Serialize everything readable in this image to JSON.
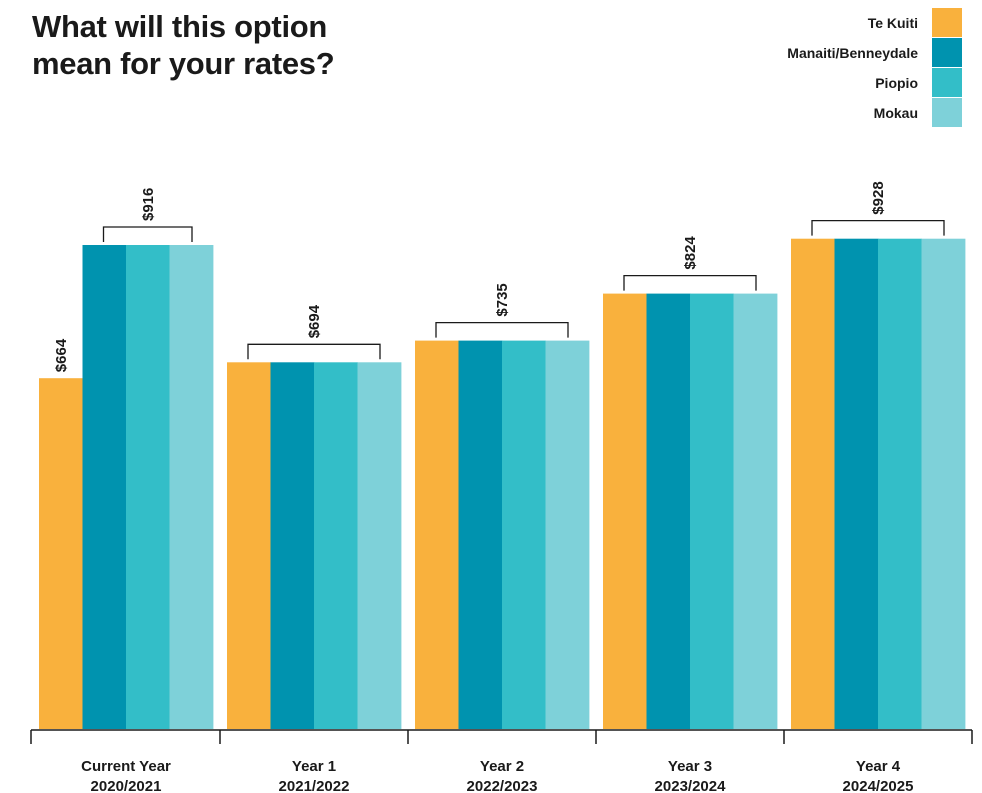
{
  "title_lines": [
    "What will this option",
    "mean for your rates?"
  ],
  "colors": {
    "te_kuiti": "#F9B13D",
    "manaiti": "#0093AF",
    "piopio": "#33BEC8",
    "mokau": "#7ED1D9",
    "text": "#1a1a1a"
  },
  "chart_data": {
    "type": "bar",
    "title": "What will this option mean for your rates?",
    "categories": [
      [
        "Current Year",
        "2020/2021"
      ],
      [
        "Year 1",
        "2021/2022"
      ],
      [
        "Year 2",
        "2022/2023"
      ],
      [
        "Year 3",
        "2023/2024"
      ],
      [
        "Year 4",
        "2024/2025"
      ]
    ],
    "series": [
      {
        "name": "Te Kuiti",
        "values": [
          664,
          694,
          735,
          824,
          928
        ]
      },
      {
        "name": "Manaiti/Benneydale",
        "values": [
          916,
          694,
          735,
          824,
          928
        ]
      },
      {
        "name": "Piopio",
        "values": [
          916,
          694,
          735,
          824,
          928
        ]
      },
      {
        "name": "Mokau",
        "values": [
          916,
          694,
          735,
          824,
          928
        ]
      }
    ],
    "value_labels": [
      {
        "category": 0,
        "text": "$664",
        "value": 664,
        "spans": [
          0,
          0
        ]
      },
      {
        "category": 0,
        "text": "$916",
        "value": 916,
        "spans": [
          1,
          3
        ]
      },
      {
        "category": 1,
        "text": "$694",
        "value": 694,
        "spans": [
          0,
          3
        ]
      },
      {
        "category": 2,
        "text": "$735",
        "value": 735,
        "spans": [
          0,
          3
        ]
      },
      {
        "category": 3,
        "text": "$824",
        "value": 824,
        "spans": [
          0,
          3
        ]
      },
      {
        "category": 4,
        "text": "$928",
        "value": 928,
        "spans": [
          0,
          3
        ]
      }
    ],
    "ylim": [
      0,
      1000
    ],
    "grid": false,
    "legend_position": "top-right"
  }
}
